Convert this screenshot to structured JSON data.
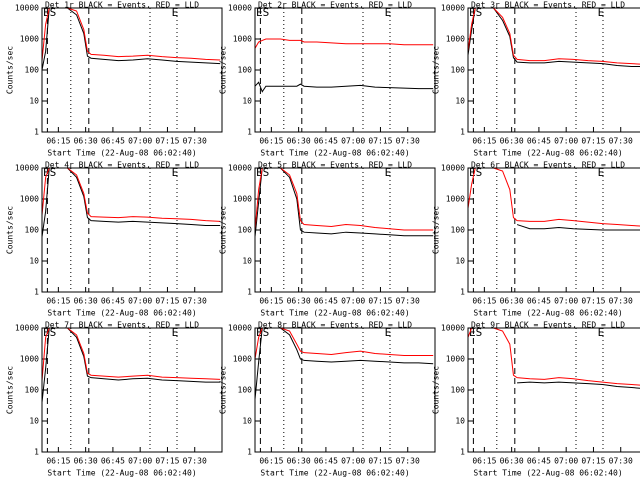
{
  "chart_data": [
    {
      "type": "line",
      "title": "Det 1r BLACK = Events, RED = LLD",
      "x_label": "Start Time (22-Aug-08 06:02:40)",
      "y_label": "Counts/sec",
      "annotations": [
        "ES",
        "E"
      ],
      "log_y": true,
      "x": [
        366,
        368,
        370,
        372,
        375,
        380,
        385,
        389,
        391,
        393,
        400,
        408,
        416,
        424,
        432,
        440,
        448,
        456,
        464
      ],
      "series": [
        {
          "color": "#000000",
          "values": [
            100,
            400,
            10000,
            10000,
            10000,
            10000,
            6000,
            1500,
            280,
            240,
            220,
            200,
            210,
            230,
            210,
            190,
            180,
            170,
            160
          ]
        },
        {
          "color": "#ff0000",
          "values": [
            200,
            3000,
            10000,
            10000,
            10000,
            10000,
            8000,
            2000,
            400,
            320,
            300,
            270,
            280,
            300,
            270,
            250,
            240,
            220,
            210
          ]
        }
      ],
      "xlim": [
        366,
        465
      ],
      "xticks": [
        {
          "value": 375,
          "label": "06:15"
        },
        {
          "value": 390,
          "label": "06:30"
        },
        {
          "value": 405,
          "label": "06:45"
        },
        {
          "value": 420,
          "label": "07:00"
        },
        {
          "value": 435,
          "label": "07:15"
        },
        {
          "value": 450,
          "label": "07:30"
        }
      ],
      "ylim": [
        1,
        10000
      ],
      "yticks": [
        1,
        10,
        100,
        1000,
        10000
      ]
    },
    {
      "type": "line",
      "title": "Det 2r BLACK = Events, RED = LLD",
      "x_label": "Start Time (22-Aug-08 06:02:40)",
      "y_label": "Counts/sec",
      "annotations": [
        "ES",
        "E"
      ],
      "log_y": true,
      "x": [
        366,
        368,
        370,
        372,
        375,
        380,
        385,
        389,
        391,
        393,
        400,
        408,
        416,
        424,
        432,
        440,
        448,
        456,
        464
      ],
      "series": [
        {
          "color": "#000000",
          "values": [
            30,
            40,
            20,
            30,
            30,
            30,
            30,
            30,
            35,
            30,
            28,
            28,
            30,
            32,
            28,
            27,
            26,
            25,
            25
          ]
        },
        {
          "color": "#ff0000",
          "values": [
            500,
            800,
            900,
            1000,
            1000,
            1000,
            900,
            900,
            900,
            800,
            800,
            750,
            700,
            700,
            700,
            700,
            650,
            650,
            650
          ]
        }
      ],
      "xlim": [
        366,
        465
      ],
      "xticks": [
        {
          "value": 375,
          "label": "06:15"
        },
        {
          "value": 390,
          "label": "06:30"
        },
        {
          "value": 405,
          "label": "06:45"
        },
        {
          "value": 420,
          "label": "07:00"
        },
        {
          "value": 435,
          "label": "07:15"
        },
        {
          "value": 450,
          "label": "07:30"
        }
      ],
      "ylim": [
        1,
        10000
      ],
      "yticks": [
        1,
        10,
        100,
        1000,
        10000
      ]
    },
    {
      "type": "line",
      "title": "Det 3r BLACK = Events, RED = LLD",
      "x_label": "Start Time (22-Aug-08 06:02:40)",
      "y_label": "Counts/sec",
      "annotations": [
        "ES",
        "E"
      ],
      "log_y": true,
      "x": [
        366,
        368,
        370,
        372,
        375,
        380,
        385,
        389,
        391,
        393,
        400,
        408,
        416,
        424,
        432,
        440,
        448,
        456,
        464
      ],
      "series": [
        {
          "color": "#000000",
          "values": [
            300,
            2000,
            10000,
            10000,
            10000,
            10000,
            4000,
            1200,
            250,
            180,
            170,
            170,
            190,
            180,
            170,
            160,
            140,
            130,
            130
          ]
        },
        {
          "color": "#ff0000",
          "values": [
            400,
            3000,
            10000,
            10000,
            10000,
            10000,
            5000,
            1500,
            300,
            220,
            200,
            200,
            230,
            220,
            200,
            190,
            170,
            160,
            150
          ]
        }
      ],
      "xlim": [
        366,
        465
      ],
      "xticks": [
        {
          "value": 375,
          "label": "06:15"
        },
        {
          "value": 390,
          "label": "06:30"
        },
        {
          "value": 405,
          "label": "06:45"
        },
        {
          "value": 420,
          "label": "07:00"
        },
        {
          "value": 435,
          "label": "07:15"
        },
        {
          "value": 450,
          "label": "07:30"
        }
      ],
      "ylim": [
        1,
        10000
      ],
      "yticks": [
        1,
        10,
        100,
        1000,
        10000
      ]
    },
    {
      "type": "line",
      "title": "Det 4r BLACK = Events, RED = LLD",
      "x_label": "Start Time (22-Aug-08 06:02:40)",
      "y_label": "Counts/sec",
      "annotations": [
        "ES",
        "E"
      ],
      "log_y": true,
      "x": [
        366,
        368,
        370,
        372,
        375,
        380,
        385,
        389,
        391,
        393,
        400,
        408,
        416,
        424,
        432,
        440,
        448,
        456,
        464
      ],
      "series": [
        {
          "color": "#000000",
          "values": [
            60,
            400,
            10000,
            10000,
            10000,
            10000,
            5000,
            1200,
            250,
            200,
            190,
            180,
            190,
            180,
            170,
            160,
            150,
            140,
            140
          ]
        },
        {
          "color": "#ff0000",
          "values": [
            300,
            5000,
            10000,
            10000,
            10000,
            10000,
            6000,
            1500,
            350,
            270,
            260,
            250,
            270,
            260,
            240,
            230,
            220,
            200,
            190
          ]
        }
      ],
      "xlim": [
        366,
        465
      ],
      "xticks": [
        {
          "value": 375,
          "label": "06:15"
        },
        {
          "value": 390,
          "label": "06:30"
        },
        {
          "value": 405,
          "label": "06:45"
        },
        {
          "value": 420,
          "label": "07:00"
        },
        {
          "value": 435,
          "label": "07:15"
        },
        {
          "value": 450,
          "label": "07:30"
        }
      ],
      "ylim": [
        1,
        10000
      ],
      "yticks": [
        1,
        10,
        100,
        1000,
        10000
      ]
    },
    {
      "type": "line",
      "title": "Det 5r BLACK = Events, RED = LLD",
      "x_label": "Start Time (22-Aug-08 06:02:40)",
      "y_label": "Counts/sec",
      "annotations": [
        "ES",
        "E"
      ],
      "log_y": true,
      "x": [
        366,
        368,
        370,
        372,
        375,
        380,
        385,
        389,
        391,
        393,
        400,
        408,
        416,
        424,
        432,
        440,
        448,
        456,
        464
      ],
      "series": [
        {
          "color": "#000000",
          "values": [
            60,
            800,
            10000,
            10000,
            10000,
            10000,
            5000,
            1000,
            100,
            85,
            80,
            75,
            85,
            80,
            75,
            70,
            65,
            65,
            65
          ]
        },
        {
          "color": "#ff0000",
          "values": [
            100,
            2000,
            10000,
            10000,
            10000,
            10000,
            6000,
            1500,
            200,
            150,
            140,
            130,
            150,
            140,
            120,
            110,
            100,
            100,
            100
          ]
        }
      ],
      "xlim": [
        366,
        465
      ],
      "xticks": [
        {
          "value": 375,
          "label": "06:15"
        },
        {
          "value": 390,
          "label": "06:30"
        },
        {
          "value": 405,
          "label": "06:45"
        },
        {
          "value": 420,
          "label": "07:00"
        },
        {
          "value": 435,
          "label": "07:15"
        },
        {
          "value": 450,
          "label": "07:30"
        }
      ],
      "ylim": [
        1,
        10000
      ],
      "yticks": [
        1,
        10,
        100,
        1000,
        10000
      ]
    },
    {
      "type": "line",
      "title": "Det 6r BLACK = Events, RED = LLD",
      "x_label": "Start Time (22-Aug-08 06:02:40)",
      "y_label": "Counts/sec",
      "annotations": [
        "ES",
        "E"
      ],
      "log_y": true,
      "x": [
        366,
        368,
        370,
        372,
        375,
        380,
        385,
        389,
        391,
        393,
        400,
        408,
        416,
        424,
        432,
        440,
        448,
        456,
        464
      ],
      "series": [
        {
          "color": "#000000",
          "values": [
            null,
            null,
            null,
            null,
            null,
            null,
            null,
            null,
            null,
            150,
            110,
            110,
            120,
            110,
            105,
            100,
            100,
            100,
            100
          ]
        },
        {
          "color": "#ff0000",
          "values": [
            500,
            3000,
            10000,
            10000,
            10000,
            10000,
            8000,
            2000,
            250,
            200,
            190,
            190,
            220,
            200,
            180,
            160,
            150,
            140,
            130
          ]
        }
      ],
      "xlim": [
        366,
        465
      ],
      "xticks": [
        {
          "value": 375,
          "label": "06:15"
        },
        {
          "value": 390,
          "label": "06:30"
        },
        {
          "value": 405,
          "label": "06:45"
        },
        {
          "value": 420,
          "label": "07:00"
        },
        {
          "value": 435,
          "label": "07:15"
        },
        {
          "value": 450,
          "label": "07:30"
        }
      ],
      "ylim": [
        1,
        10000
      ],
      "yticks": [
        1,
        10,
        100,
        1000,
        10000
      ]
    },
    {
      "type": "line",
      "title": "Det 7r BLACK = Events, RED = LLD",
      "x_label": "Start Time (22-Aug-08 06:02:40)",
      "y_label": "Counts/sec",
      "annotations": [
        "ES",
        "E"
      ],
      "log_y": true,
      "x": [
        366,
        368,
        370,
        372,
        375,
        380,
        385,
        389,
        391,
        393,
        400,
        408,
        416,
        424,
        432,
        440,
        448,
        456,
        464
      ],
      "series": [
        {
          "color": "#000000",
          "values": [
            40,
            500,
            10000,
            10000,
            10000,
            10000,
            5000,
            1200,
            280,
            250,
            230,
            210,
            230,
            240,
            210,
            200,
            190,
            180,
            180
          ]
        },
        {
          "color": "#ff0000",
          "values": [
            200,
            5000,
            10000,
            10000,
            10000,
            10000,
            6000,
            1500,
            350,
            300,
            280,
            260,
            280,
            300,
            260,
            250,
            240,
            230,
            220
          ]
        }
      ],
      "xlim": [
        366,
        465
      ],
      "xticks": [
        {
          "value": 375,
          "label": "06:15"
        },
        {
          "value": 390,
          "label": "06:30"
        },
        {
          "value": 405,
          "label": "06:45"
        },
        {
          "value": 420,
          "label": "07:00"
        },
        {
          "value": 435,
          "label": "07:15"
        },
        {
          "value": 450,
          "label": "07:30"
        }
      ],
      "ylim": [
        1,
        10000
      ],
      "yticks": [
        1,
        10,
        100,
        1000,
        10000
      ]
    },
    {
      "type": "line",
      "title": "Det 8r BLACK = Events, RED = LLD",
      "x_label": "Start Time (22-Aug-08 06:02:40)",
      "y_label": "Counts/sec",
      "annotations": [
        "ES",
        "E"
      ],
      "log_y": true,
      "x": [
        366,
        368,
        370,
        372,
        375,
        380,
        385,
        389,
        391,
        393,
        400,
        408,
        416,
        424,
        432,
        440,
        448,
        456,
        464
      ],
      "series": [
        {
          "color": "#000000",
          "values": [
            50,
            800,
            10000,
            10000,
            10000,
            10000,
            6000,
            2000,
            1000,
            900,
            850,
            800,
            850,
            900,
            850,
            800,
            750,
            750,
            700
          ]
        },
        {
          "color": "#ff0000",
          "values": [
            1000,
            5000,
            10000,
            10000,
            10000,
            10000,
            8000,
            3000,
            1800,
            1600,
            1500,
            1400,
            1600,
            1800,
            1500,
            1400,
            1300,
            1300,
            1300
          ]
        }
      ],
      "xlim": [
        366,
        465
      ],
      "xticks": [
        {
          "value": 375,
          "label": "06:15"
        },
        {
          "value": 390,
          "label": "06:30"
        },
        {
          "value": 405,
          "label": "06:45"
        },
        {
          "value": 420,
          "label": "07:00"
        },
        {
          "value": 435,
          "label": "07:15"
        },
        {
          "value": 450,
          "label": "07:30"
        }
      ],
      "ylim": [
        1,
        10000
      ],
      "yticks": [
        1,
        10,
        100,
        1000,
        10000
      ]
    },
    {
      "type": "line",
      "title": "Det 9r BLACK = Events, RED = LLD",
      "x_label": "Start Time (22-Aug-08 06:02:40)",
      "y_label": "Counts/sec",
      "annotations": [
        "ES",
        "E"
      ],
      "log_y": true,
      "x": [
        366,
        368,
        370,
        372,
        375,
        380,
        385,
        389,
        391,
        393,
        400,
        408,
        416,
        424,
        432,
        440,
        448,
        456,
        464
      ],
      "series": [
        {
          "color": "#000000",
          "values": [
            null,
            null,
            null,
            null,
            null,
            null,
            null,
            null,
            null,
            170,
            180,
            170,
            180,
            170,
            160,
            150,
            130,
            120,
            110
          ]
        },
        {
          "color": "#ff0000",
          "values": [
            5000,
            10000,
            10000,
            10000,
            10000,
            10000,
            8000,
            3000,
            300,
            250,
            230,
            220,
            250,
            230,
            200,
            180,
            160,
            150,
            140
          ]
        }
      ],
      "xlim": [
        366,
        465
      ],
      "xticks": [
        {
          "value": 375,
          "label": "06:15"
        },
        {
          "value": 390,
          "label": "06:30"
        },
        {
          "value": 405,
          "label": "06:45"
        },
        {
          "value": 420,
          "label": "07:00"
        },
        {
          "value": 435,
          "label": "07:15"
        },
        {
          "value": 450,
          "label": "07:30"
        }
      ],
      "ylim": [
        1,
        10000
      ],
      "yticks": [
        1,
        10,
        100,
        1000,
        10000
      ]
    }
  ]
}
